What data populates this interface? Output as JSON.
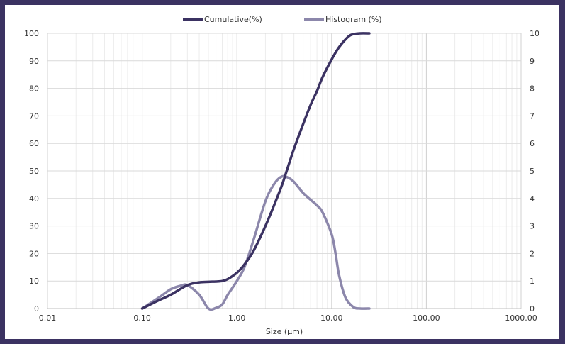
{
  "chart_data": {
    "type": "line",
    "xlabel": "Size (µm)",
    "x_scale": "log",
    "xlim": [
      0.01,
      1000
    ],
    "x_tick_labels": [
      "0.01",
      "0.10",
      "1.00",
      "10.00",
      "100.00",
      "1000.00"
    ],
    "ylim_left": [
      0,
      100
    ],
    "y_left_tick_labels": [
      "0",
      "10",
      "20",
      "30",
      "40",
      "50",
      "60",
      "70",
      "80",
      "90",
      "100"
    ],
    "ylim_right": [
      0,
      10
    ],
    "y_right_tick_labels": [
      "0",
      "1",
      "2",
      "3",
      "4",
      "5",
      "6",
      "7",
      "8",
      "9",
      "10"
    ],
    "grid": true,
    "legend_position": "top-center",
    "colors": {
      "cumulative": "#3b3262",
      "histogram": "#8c87ab"
    },
    "series": [
      {
        "name": "Cumulative(%)",
        "axis": "left",
        "x": [
          0.1,
          0.15,
          0.2,
          0.3,
          0.4,
          0.5,
          0.6,
          0.7,
          0.8,
          1.0,
          1.2,
          1.5,
          2.0,
          2.5,
          3.0,
          3.5,
          4.0,
          5.0,
          6.0,
          7.0,
          8.0,
          10.0,
          12.0,
          15.0,
          17.0,
          20.0,
          25.0
        ],
        "values": [
          0,
          3,
          5,
          8.5,
          9.5,
          9.7,
          9.8,
          10,
          10.7,
          13,
          16,
          21,
          30,
          38,
          45,
          52,
          58,
          67,
          74,
          79,
          84,
          90.5,
          95,
          98.8,
          99.7,
          100,
          100
        ]
      },
      {
        "name": "Histogram (%)",
        "axis": "right",
        "x": [
          0.1,
          0.15,
          0.2,
          0.25,
          0.3,
          0.4,
          0.5,
          0.6,
          0.7,
          0.8,
          1.0,
          1.2,
          1.5,
          2.0,
          2.5,
          3.0,
          3.5,
          4.0,
          5.0,
          6.0,
          7.0,
          8.0,
          10.0,
          11.0,
          12.0,
          14.0,
          17.0,
          20.0,
          25.0
        ],
        "values": [
          0,
          0.4,
          0.7,
          0.82,
          0.85,
          0.5,
          0,
          0.02,
          0.15,
          0.5,
          1.0,
          1.5,
          2.5,
          3.9,
          4.55,
          4.8,
          4.75,
          4.6,
          4.2,
          3.95,
          3.75,
          3.5,
          2.7,
          2.0,
          1.2,
          0.4,
          0.05,
          0,
          0
        ]
      }
    ]
  }
}
